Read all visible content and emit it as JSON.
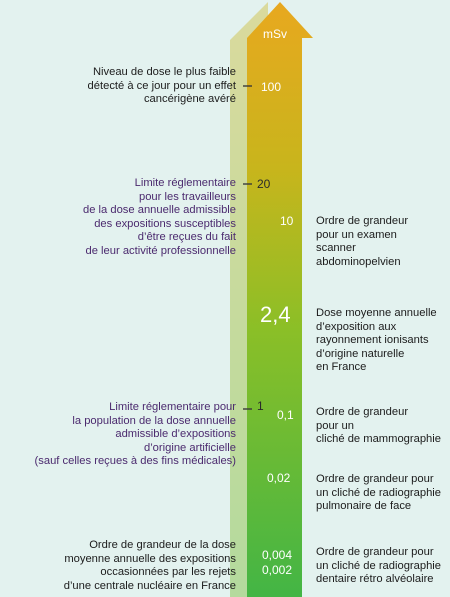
{
  "scale": {
    "unit": "mSv",
    "top_color": "#e8a81f",
    "bottom_color": "#43b545",
    "values": {
      "v100": "100",
      "v20": "20",
      "v10": "10",
      "v24": "2,4",
      "v1": "1",
      "v01": "0,1",
      "v002": "0,02",
      "v0004": "0,004",
      "v0002": "0,002"
    }
  },
  "left_annotations": {
    "lowest_cancer": "Niveau de dose le plus faible\ndétecté à ce jour pour un effet\ncancérigène avéré",
    "workers_limit": "Limite réglementaire\npour les travailleurs\nde la dose annuelle admissible\ndes expositions susceptibles\nd’être reçues du fait\nde leur activité professionnelle",
    "public_limit": "Limite réglementaire pour\nla population de la dose annuelle\nadmissible d’expositions\nd’origine artificielle\n(sauf celles reçues à des fins médicales)",
    "nuclear_plant": "Ordre de grandeur de la dose\nmoyenne annuelle des expositions\noccasionnées par les rejets\nd’une centrale nucléaire en France"
  },
  "right_annotations": {
    "abdominal_scan": "Ordre de grandeur\npour un examen\nscanner\nabdominopelvien",
    "natural_average": "Dose moyenne annuelle\nd’exposition aux\nrayonnement ionisants\nd’origine naturelle\nen France",
    "mammography": "Ordre de grandeur\npour un\ncliché de mammographie",
    "chest_xray": "Ordre de grandeur pour\nun cliché de radiographie\npulmonaire de face",
    "dental_xray": "Ordre de grandeur pour\nun cliché de radiographie\ndentaire rétro alvéolaire"
  }
}
